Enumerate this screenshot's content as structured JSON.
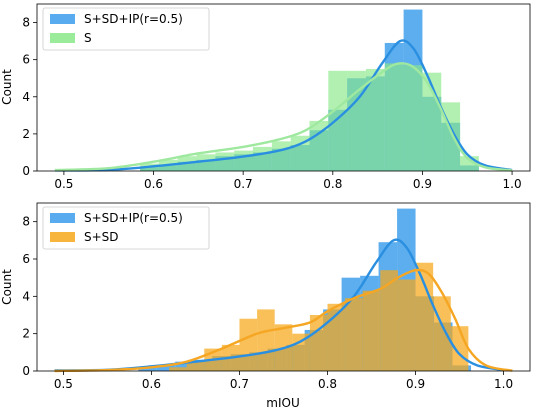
{
  "colors": {
    "blue": "#1f8fe8",
    "blue_line": "#2a8fe0",
    "green": "#88e888",
    "green_line": "#9fe89f",
    "orange": "#f7a81b",
    "orange_line": "#f5a623",
    "overlap_top": "#80d8b4",
    "overlap_bottom": "#c9a548"
  },
  "chart_data": [
    {
      "type": "bar",
      "xlabel": "",
      "ylabel": "Count",
      "xlim": [
        0.47,
        1.02
      ],
      "ylim": [
        0,
        9
      ],
      "xticks": [
        "0.5",
        "0.6",
        "0.7",
        "0.8",
        "0.9",
        "1.0"
      ],
      "xtick_values": [
        0.5,
        0.6,
        0.7,
        0.8,
        0.9,
        1.0
      ],
      "yticks": [
        "0",
        "2",
        "4",
        "6",
        "8"
      ],
      "ytick_values": [
        0,
        2,
        4,
        6,
        8
      ],
      "legend_position": "top-left",
      "series": [
        {
          "name": "S+SD+IP(r=0.5)",
          "bins": [
            [
              0.585,
              0.606,
              0.2
            ],
            [
              0.606,
              0.627,
              0.3
            ],
            [
              0.627,
              0.648,
              0.5
            ],
            [
              0.648,
              0.669,
              0.6
            ],
            [
              0.669,
              0.69,
              0.8
            ],
            [
              0.69,
              0.711,
              0.9
            ],
            [
              0.711,
              0.732,
              1.0
            ],
            [
              0.732,
              0.753,
              1.2
            ],
            [
              0.753,
              0.774,
              1.4
            ],
            [
              0.774,
              0.795,
              2.2
            ],
            [
              0.795,
              0.816,
              3.3
            ],
            [
              0.816,
              0.837,
              5.0
            ],
            [
              0.837,
              0.858,
              5.1
            ],
            [
              0.858,
              0.879,
              6.9
            ],
            [
              0.879,
              0.9,
              8.7
            ],
            [
              0.9,
              0.921,
              4.0
            ],
            [
              0.921,
              0.942,
              2.6
            ],
            [
              0.942,
              0.963,
              0.3
            ]
          ],
          "kde": [
            [
              0.49,
              0.03
            ],
            [
              0.55,
              0.06
            ],
            [
              0.6,
              0.25
            ],
            [
              0.65,
              0.5
            ],
            [
              0.7,
              0.78
            ],
            [
              0.74,
              1.1
            ],
            [
              0.77,
              1.6
            ],
            [
              0.8,
              2.6
            ],
            [
              0.83,
              4.0
            ],
            [
              0.855,
              5.8
            ],
            [
              0.875,
              7.0
            ],
            [
              0.89,
              6.6
            ],
            [
              0.905,
              5.2
            ],
            [
              0.92,
              3.5
            ],
            [
              0.935,
              2.0
            ],
            [
              0.95,
              0.9
            ],
            [
              0.97,
              0.3
            ],
            [
              1.0,
              0.05
            ]
          ]
        },
        {
          "name": "S",
          "bins": [
            [
              0.585,
              0.606,
              0.4
            ],
            [
              0.606,
              0.627,
              0.6
            ],
            [
              0.627,
              0.648,
              0.8
            ],
            [
              0.648,
              0.669,
              0.9
            ],
            [
              0.669,
              0.69,
              1.0
            ],
            [
              0.69,
              0.711,
              1.1
            ],
            [
              0.711,
              0.732,
              1.3
            ],
            [
              0.732,
              0.753,
              1.6
            ],
            [
              0.753,
              0.774,
              1.9
            ],
            [
              0.774,
              0.795,
              2.7
            ],
            [
              0.795,
              0.816,
              5.4
            ],
            [
              0.816,
              0.837,
              5.4
            ],
            [
              0.837,
              0.858,
              5.5
            ],
            [
              0.858,
              0.879,
              5.8
            ],
            [
              0.879,
              0.9,
              5.7
            ],
            [
              0.9,
              0.921,
              5.3
            ],
            [
              0.921,
              0.942,
              3.7
            ],
            [
              0.942,
              0.963,
              0.8
            ]
          ],
          "kde": [
            [
              0.49,
              0.05
            ],
            [
              0.55,
              0.15
            ],
            [
              0.6,
              0.5
            ],
            [
              0.65,
              0.95
            ],
            [
              0.7,
              1.3
            ],
            [
              0.74,
              1.7
            ],
            [
              0.77,
              2.2
            ],
            [
              0.8,
              3.2
            ],
            [
              0.83,
              4.4
            ],
            [
              0.86,
              5.5
            ],
            [
              0.875,
              5.8
            ],
            [
              0.89,
              5.6
            ],
            [
              0.905,
              4.8
            ],
            [
              0.92,
              3.4
            ],
            [
              0.935,
              1.8
            ],
            [
              0.95,
              0.7
            ],
            [
              0.97,
              0.2
            ],
            [
              1.0,
              0.03
            ]
          ]
        }
      ]
    },
    {
      "type": "bar",
      "xlabel": "mIOU",
      "ylabel": "Count",
      "xlim": [
        0.47,
        1.03
      ],
      "ylim": [
        0,
        9
      ],
      "xticks": [
        "0.5",
        "0.6",
        "0.7",
        "0.8",
        "0.9",
        "1.0"
      ],
      "xtick_values": [
        0.5,
        0.6,
        0.7,
        0.8,
        0.9,
        1.0
      ],
      "yticks": [
        "0",
        "2",
        "4",
        "6",
        "8"
      ],
      "ytick_values": [
        0,
        2,
        4,
        6,
        8
      ],
      "legend_position": "top-left",
      "series": [
        {
          "name": "S+SD+IP(r=0.5)",
          "bins": [
            [
              0.585,
              0.606,
              0.2
            ],
            [
              0.606,
              0.627,
              0.3
            ],
            [
              0.627,
              0.648,
              0.5
            ],
            [
              0.648,
              0.669,
              0.6
            ],
            [
              0.669,
              0.69,
              0.8
            ],
            [
              0.69,
              0.711,
              0.9
            ],
            [
              0.711,
              0.732,
              1.0
            ],
            [
              0.732,
              0.753,
              1.2
            ],
            [
              0.753,
              0.774,
              1.4
            ],
            [
              0.774,
              0.795,
              2.2
            ],
            [
              0.795,
              0.816,
              3.3
            ],
            [
              0.816,
              0.837,
              5.0
            ],
            [
              0.837,
              0.858,
              5.1
            ],
            [
              0.858,
              0.879,
              6.9
            ],
            [
              0.879,
              0.9,
              8.7
            ],
            [
              0.9,
              0.921,
              4.0
            ],
            [
              0.921,
              0.942,
              2.6
            ],
            [
              0.942,
              0.963,
              0.3
            ]
          ],
          "kde": [
            [
              0.49,
              0.03
            ],
            [
              0.55,
              0.06
            ],
            [
              0.6,
              0.25
            ],
            [
              0.65,
              0.5
            ],
            [
              0.7,
              0.78
            ],
            [
              0.74,
              1.1
            ],
            [
              0.77,
              1.6
            ],
            [
              0.8,
              2.6
            ],
            [
              0.83,
              4.0
            ],
            [
              0.855,
              5.8
            ],
            [
              0.875,
              7.0
            ],
            [
              0.89,
              6.6
            ],
            [
              0.905,
              5.2
            ],
            [
              0.92,
              3.5
            ],
            [
              0.935,
              2.0
            ],
            [
              0.95,
              0.9
            ],
            [
              0.97,
              0.3
            ],
            [
              1.0,
              0.05
            ]
          ]
        },
        {
          "name": "S+SD",
          "bins": [
            [
              0.62,
              0.64,
              0.2
            ],
            [
              0.64,
              0.66,
              0.5
            ],
            [
              0.66,
              0.68,
              1.2
            ],
            [
              0.68,
              0.7,
              1.4
            ],
            [
              0.7,
              0.72,
              2.8
            ],
            [
              0.72,
              0.74,
              3.3
            ],
            [
              0.74,
              0.76,
              2.5
            ],
            [
              0.76,
              0.78,
              2.0
            ],
            [
              0.78,
              0.8,
              3.0
            ],
            [
              0.8,
              0.82,
              3.6
            ],
            [
              0.82,
              0.84,
              3.9
            ],
            [
              0.84,
              0.86,
              4.3
            ],
            [
              0.86,
              0.88,
              5.4
            ],
            [
              0.88,
              0.9,
              4.9
            ],
            [
              0.9,
              0.92,
              5.8
            ],
            [
              0.92,
              0.94,
              4.0
            ],
            [
              0.94,
              0.96,
              2.4
            ]
          ],
          "kde": [
            [
              0.49,
              0.0
            ],
            [
              0.55,
              0.05
            ],
            [
              0.6,
              0.2
            ],
            [
              0.64,
              0.5
            ],
            [
              0.68,
              1.2
            ],
            [
              0.72,
              2.0
            ],
            [
              0.75,
              2.3
            ],
            [
              0.78,
              2.6
            ],
            [
              0.8,
              3.2
            ],
            [
              0.83,
              3.9
            ],
            [
              0.86,
              4.4
            ],
            [
              0.88,
              5.0
            ],
            [
              0.9,
              5.4
            ],
            [
              0.915,
              5.2
            ],
            [
              0.93,
              4.2
            ],
            [
              0.945,
              2.8
            ],
            [
              0.96,
              1.2
            ],
            [
              0.98,
              0.3
            ],
            [
              1.01,
              0.02
            ]
          ]
        }
      ]
    }
  ]
}
